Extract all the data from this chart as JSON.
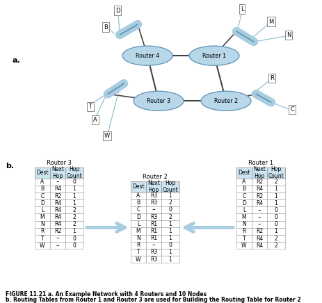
{
  "router3_title": "Router 3",
  "router2_title": "Router 2",
  "router1_title": "Router 1",
  "router3_table": {
    "headers": [
      "Dest",
      "Next\nHop",
      "Hop\nCount"
    ],
    "rows": [
      [
        "A",
        "--",
        "0"
      ],
      [
        "B",
        "R4",
        "1"
      ],
      [
        "C",
        "R2",
        "1"
      ],
      [
        "D",
        "R4",
        "1"
      ],
      [
        "L",
        "R4",
        "2"
      ],
      [
        "M",
        "R4",
        "2"
      ],
      [
        "N",
        "R4",
        "2"
      ],
      [
        "R",
        "R2",
        "1"
      ],
      [
        "T",
        "--",
        "0"
      ],
      [
        "W",
        "--",
        "0"
      ]
    ]
  },
  "router2_table": {
    "headers": [
      "Dest",
      "Next\nHop",
      "Hop\nCount"
    ],
    "rows": [
      [
        "A",
        "R3",
        "1"
      ],
      [
        "B",
        "R3",
        "2"
      ],
      [
        "C",
        "--",
        "0"
      ],
      [
        "D",
        "R3",
        "2"
      ],
      [
        "L",
        "R1",
        "1"
      ],
      [
        "M",
        "R1",
        "1"
      ],
      [
        "N",
        "R1",
        "1"
      ],
      [
        "R",
        "--",
        "0"
      ],
      [
        "T",
        "R3",
        "1"
      ],
      [
        "W",
        "R3",
        "1"
      ]
    ]
  },
  "router1_table": {
    "headers": [
      "Dest",
      "Next\nHop",
      "Hop\nCount"
    ],
    "rows": [
      [
        "A",
        "R2",
        "2"
      ],
      [
        "B",
        "R4",
        "1"
      ],
      [
        "C",
        "R2",
        "1"
      ],
      [
        "D",
        "R4",
        "1"
      ],
      [
        "L",
        "--",
        "0"
      ],
      [
        "M",
        "--",
        "0"
      ],
      [
        "N",
        "--",
        "0"
      ],
      [
        "R",
        "R2",
        "1"
      ],
      [
        "T",
        "R4",
        "2"
      ],
      [
        "W",
        "R4",
        "2"
      ]
    ]
  },
  "caption_line1": "FIGURE 11.21 a. An Example Network with 4 Routers and 10 Nodes",
  "caption_line2": "b. Routing Tables from Router 1 and Router 3 are used for Building the Routing Table for Router 2",
  "label_a": "a.",
  "label_b": "b.",
  "router_fill": "#b8d8ea",
  "router_edge": "#6699bb",
  "table_header_fill": "#cce4f0",
  "table_cell_fill": "#ffffff",
  "table_border": "#999999",
  "arrow_color": "#a8cce0",
  "network_line_color": "#444444",
  "hub_fill": "#a8cce0",
  "hub_edge": "#5588aa",
  "node_fill": "#ffffff",
  "node_edge": "#888888",
  "thin_line_color": "#88bbcc"
}
